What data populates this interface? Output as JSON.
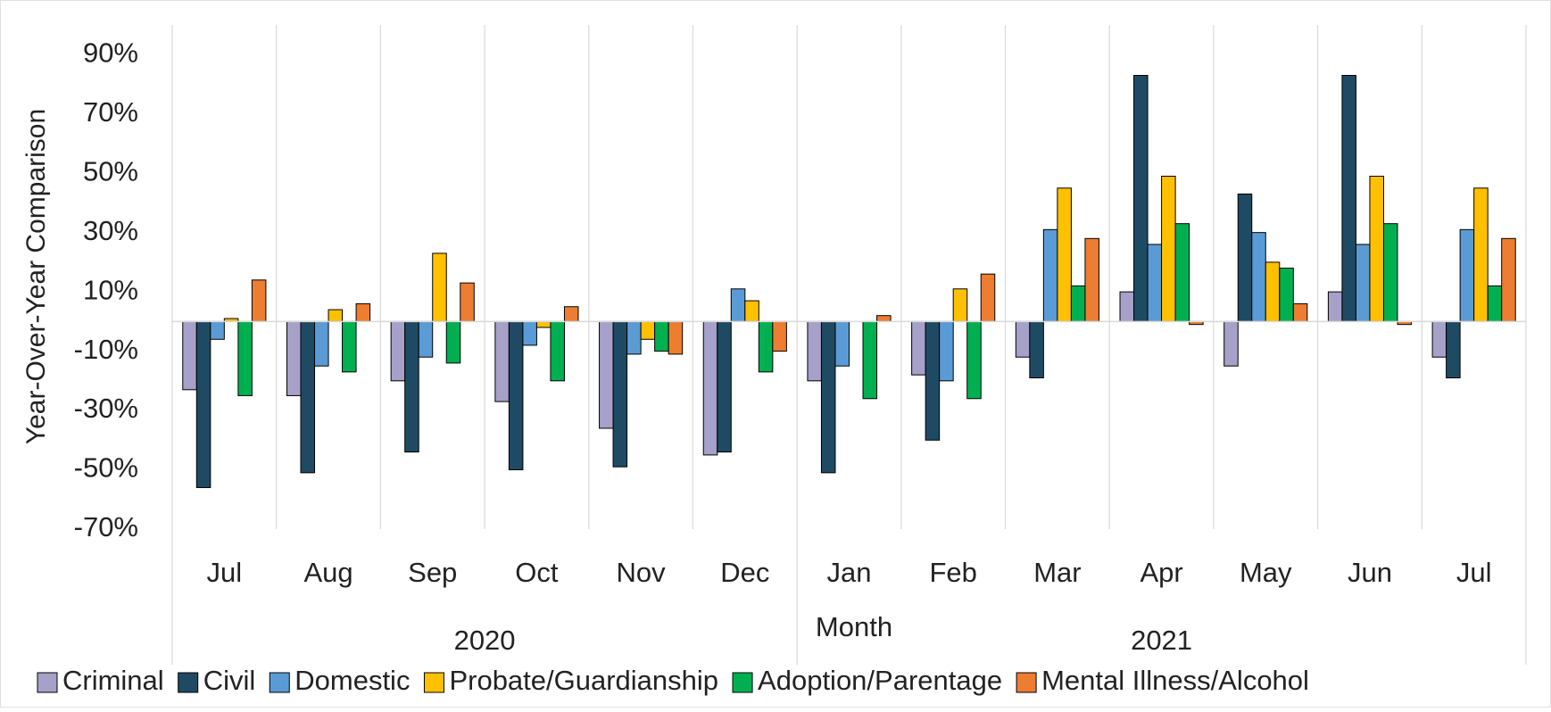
{
  "chart_data": {
    "type": "bar",
    "y_label": "Year-Over-Year Comparison",
    "x_label": "Month",
    "groups": [
      {
        "label": "2020",
        "categories": [
          "Jul",
          "Aug",
          "Sep",
          "Oct",
          "Nov",
          "Dec"
        ]
      },
      {
        "label": "2021",
        "categories": [
          "Jan",
          "Feb",
          "Mar",
          "Apr",
          "May",
          "Jun",
          "Jul"
        ]
      }
    ],
    "series": [
      {
        "name": "Criminal",
        "color": "#a5a1c9",
        "values": [
          -23,
          -25,
          -20,
          -27,
          -36,
          -45,
          -20,
          -18,
          -12,
          10,
          -15,
          10,
          -12
        ]
      },
      {
        "name": "Civil",
        "color": "#1f4a63",
        "values": [
          -56,
          -51,
          -44,
          -50,
          -49,
          -44,
          -51,
          -40,
          -19,
          83,
          43,
          83,
          -19
        ]
      },
      {
        "name": "Domestic",
        "color": "#5b9bd5",
        "values": [
          -6,
          -15,
          -12,
          -8,
          -11,
          11,
          -15,
          -20,
          31,
          26,
          30,
          26,
          31
        ]
      },
      {
        "name": "Probate/Guardianship",
        "color": "#ffc000",
        "values": [
          1,
          4,
          23,
          -2,
          -6,
          7,
          0,
          11,
          45,
          49,
          20,
          49,
          45
        ]
      },
      {
        "name": "Adoption/Parentage",
        "color": "#00b050",
        "values": [
          -25,
          -17,
          -14,
          -20,
          -10,
          -17,
          -26,
          -26,
          12,
          33,
          18,
          33,
          12
        ]
      },
      {
        "name": "Mental Illness/Alcohol",
        "color": "#ed7d31",
        "values": [
          14,
          6,
          13,
          5,
          -11,
          -10,
          2,
          16,
          28,
          -1,
          6,
          -1,
          28
        ]
      }
    ],
    "ylim": [
      -70,
      100
    ],
    "yticks": [
      {
        "value": 90,
        "label": "90%"
      },
      {
        "value": 70,
        "label": "70%"
      },
      {
        "value": 50,
        "label": "50%"
      },
      {
        "value": 30,
        "label": "30%"
      },
      {
        "value": 10,
        "label": "10%"
      },
      {
        "value": -10,
        "label": "-10%"
      },
      {
        "value": -30,
        "label": "-30%"
      },
      {
        "value": -50,
        "label": "-50%"
      },
      {
        "value": -70,
        "label": "-70%"
      }
    ],
    "grid": false,
    "legend": "bottom"
  }
}
